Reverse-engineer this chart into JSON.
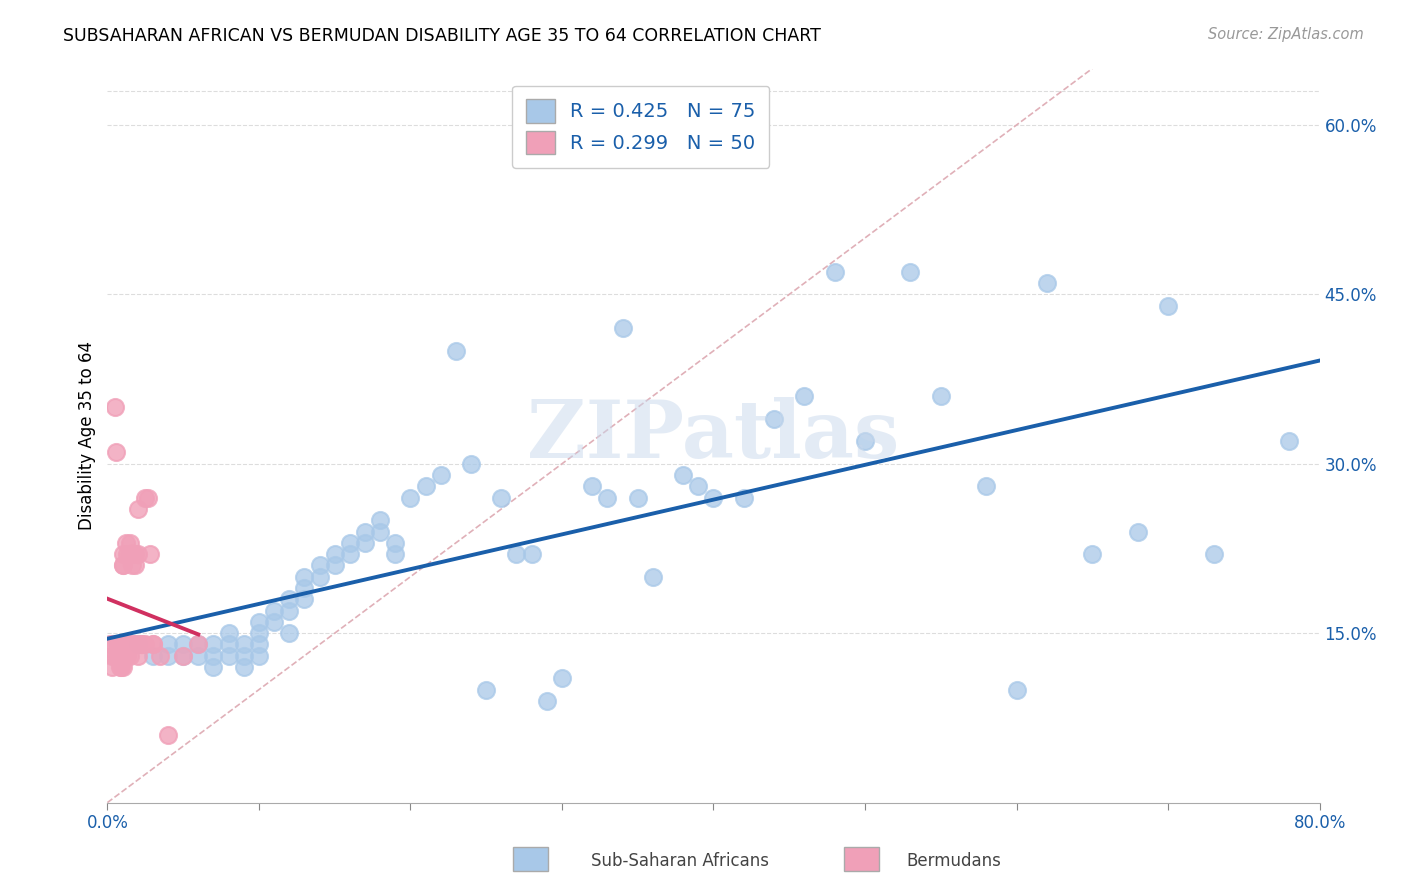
{
  "title": "SUBSAHARAN AFRICAN VS BERMUDAN DISABILITY AGE 35 TO 64 CORRELATION CHART",
  "source": "Source: ZipAtlas.com",
  "ylabel": "Disability Age 35 to 64",
  "xlim": [
    0,
    0.8
  ],
  "ylim": [
    0,
    0.65
  ],
  "ytick_positions": [
    0.15,
    0.3,
    0.45,
    0.6
  ],
  "ytick_labels": [
    "15.0%",
    "30.0%",
    "45.0%",
    "60.0%"
  ],
  "R_blue": 0.425,
  "N_blue": 75,
  "R_pink": 0.299,
  "N_pink": 50,
  "blue_dot_color": "#a8c8e8",
  "blue_line_color": "#1a5faa",
  "pink_dot_color": "#f0a0b8",
  "pink_line_color": "#d03060",
  "diag_color": "#e0b0b8",
  "watermark_color": "#c8d8ec",
  "blue_scatter_x": [
    0.02,
    0.03,
    0.04,
    0.04,
    0.05,
    0.05,
    0.06,
    0.06,
    0.07,
    0.07,
    0.07,
    0.08,
    0.08,
    0.08,
    0.09,
    0.09,
    0.09,
    0.1,
    0.1,
    0.1,
    0.1,
    0.11,
    0.11,
    0.12,
    0.12,
    0.12,
    0.13,
    0.13,
    0.13,
    0.14,
    0.14,
    0.15,
    0.15,
    0.16,
    0.16,
    0.17,
    0.17,
    0.18,
    0.18,
    0.19,
    0.19,
    0.2,
    0.21,
    0.22,
    0.23,
    0.24,
    0.25,
    0.26,
    0.27,
    0.28,
    0.29,
    0.3,
    0.32,
    0.33,
    0.34,
    0.35,
    0.36,
    0.38,
    0.39,
    0.4,
    0.42,
    0.44,
    0.46,
    0.48,
    0.5,
    0.53,
    0.55,
    0.58,
    0.6,
    0.62,
    0.65,
    0.68,
    0.7,
    0.73,
    0.78
  ],
  "blue_scatter_y": [
    0.14,
    0.13,
    0.14,
    0.13,
    0.14,
    0.13,
    0.14,
    0.13,
    0.14,
    0.13,
    0.12,
    0.15,
    0.14,
    0.13,
    0.14,
    0.13,
    0.12,
    0.16,
    0.15,
    0.14,
    0.13,
    0.17,
    0.16,
    0.18,
    0.17,
    0.15,
    0.2,
    0.19,
    0.18,
    0.21,
    0.2,
    0.22,
    0.21,
    0.23,
    0.22,
    0.24,
    0.23,
    0.25,
    0.24,
    0.23,
    0.22,
    0.27,
    0.28,
    0.29,
    0.4,
    0.3,
    0.1,
    0.27,
    0.22,
    0.22,
    0.09,
    0.11,
    0.28,
    0.27,
    0.42,
    0.27,
    0.2,
    0.29,
    0.28,
    0.27,
    0.27,
    0.34,
    0.36,
    0.47,
    0.32,
    0.47,
    0.36,
    0.28,
    0.1,
    0.46,
    0.22,
    0.24,
    0.44,
    0.22,
    0.32
  ],
  "pink_scatter_x": [
    0.002,
    0.003,
    0.003,
    0.004,
    0.005,
    0.005,
    0.006,
    0.007,
    0.007,
    0.008,
    0.008,
    0.008,
    0.009,
    0.009,
    0.01,
    0.01,
    0.01,
    0.01,
    0.01,
    0.01,
    0.012,
    0.012,
    0.013,
    0.013,
    0.014,
    0.015,
    0.015,
    0.015,
    0.016,
    0.016,
    0.017,
    0.017,
    0.018,
    0.018,
    0.019,
    0.02,
    0.02,
    0.02,
    0.022,
    0.023,
    0.025,
    0.025,
    0.027,
    0.028,
    0.03,
    0.03,
    0.035,
    0.04,
    0.05,
    0.06
  ],
  "pink_scatter_y": [
    0.14,
    0.13,
    0.12,
    0.14,
    0.35,
    0.13,
    0.31,
    0.14,
    0.13,
    0.14,
    0.13,
    0.12,
    0.14,
    0.12,
    0.22,
    0.21,
    0.21,
    0.14,
    0.13,
    0.12,
    0.23,
    0.13,
    0.22,
    0.13,
    0.14,
    0.23,
    0.22,
    0.13,
    0.22,
    0.21,
    0.22,
    0.14,
    0.22,
    0.21,
    0.14,
    0.26,
    0.22,
    0.13,
    0.14,
    0.14,
    0.27,
    0.14,
    0.27,
    0.22,
    0.14,
    0.14,
    0.13,
    0.06,
    0.13,
    0.14
  ]
}
